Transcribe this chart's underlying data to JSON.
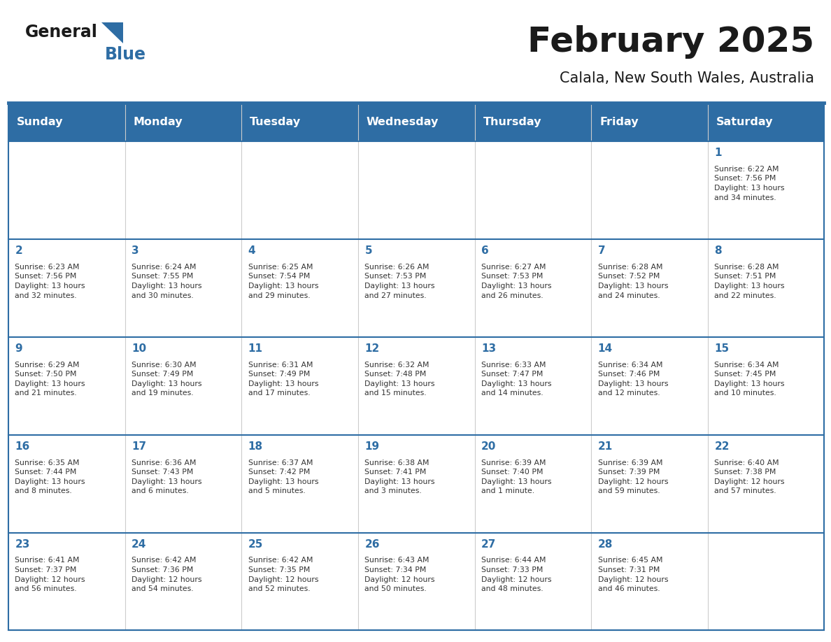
{
  "title": "February 2025",
  "subtitle": "Calala, New South Wales, Australia",
  "header_bg": "#2E6DA4",
  "header_text_color": "#FFFFFF",
  "day_number_color": "#2E6DA4",
  "text_color": "#333333",
  "border_color": "#2E6DA4",
  "days_of_week": [
    "Sunday",
    "Monday",
    "Tuesday",
    "Wednesday",
    "Thursday",
    "Friday",
    "Saturday"
  ],
  "weeks": [
    [
      {
        "day": null,
        "info": null
      },
      {
        "day": null,
        "info": null
      },
      {
        "day": null,
        "info": null
      },
      {
        "day": null,
        "info": null
      },
      {
        "day": null,
        "info": null
      },
      {
        "day": null,
        "info": null
      },
      {
        "day": 1,
        "info": "Sunrise: 6:22 AM\nSunset: 7:56 PM\nDaylight: 13 hours\nand 34 minutes."
      }
    ],
    [
      {
        "day": 2,
        "info": "Sunrise: 6:23 AM\nSunset: 7:56 PM\nDaylight: 13 hours\nand 32 minutes."
      },
      {
        "day": 3,
        "info": "Sunrise: 6:24 AM\nSunset: 7:55 PM\nDaylight: 13 hours\nand 30 minutes."
      },
      {
        "day": 4,
        "info": "Sunrise: 6:25 AM\nSunset: 7:54 PM\nDaylight: 13 hours\nand 29 minutes."
      },
      {
        "day": 5,
        "info": "Sunrise: 6:26 AM\nSunset: 7:53 PM\nDaylight: 13 hours\nand 27 minutes."
      },
      {
        "day": 6,
        "info": "Sunrise: 6:27 AM\nSunset: 7:53 PM\nDaylight: 13 hours\nand 26 minutes."
      },
      {
        "day": 7,
        "info": "Sunrise: 6:28 AM\nSunset: 7:52 PM\nDaylight: 13 hours\nand 24 minutes."
      },
      {
        "day": 8,
        "info": "Sunrise: 6:28 AM\nSunset: 7:51 PM\nDaylight: 13 hours\nand 22 minutes."
      }
    ],
    [
      {
        "day": 9,
        "info": "Sunrise: 6:29 AM\nSunset: 7:50 PM\nDaylight: 13 hours\nand 21 minutes."
      },
      {
        "day": 10,
        "info": "Sunrise: 6:30 AM\nSunset: 7:49 PM\nDaylight: 13 hours\nand 19 minutes."
      },
      {
        "day": 11,
        "info": "Sunrise: 6:31 AM\nSunset: 7:49 PM\nDaylight: 13 hours\nand 17 minutes."
      },
      {
        "day": 12,
        "info": "Sunrise: 6:32 AM\nSunset: 7:48 PM\nDaylight: 13 hours\nand 15 minutes."
      },
      {
        "day": 13,
        "info": "Sunrise: 6:33 AM\nSunset: 7:47 PM\nDaylight: 13 hours\nand 14 minutes."
      },
      {
        "day": 14,
        "info": "Sunrise: 6:34 AM\nSunset: 7:46 PM\nDaylight: 13 hours\nand 12 minutes."
      },
      {
        "day": 15,
        "info": "Sunrise: 6:34 AM\nSunset: 7:45 PM\nDaylight: 13 hours\nand 10 minutes."
      }
    ],
    [
      {
        "day": 16,
        "info": "Sunrise: 6:35 AM\nSunset: 7:44 PM\nDaylight: 13 hours\nand 8 minutes."
      },
      {
        "day": 17,
        "info": "Sunrise: 6:36 AM\nSunset: 7:43 PM\nDaylight: 13 hours\nand 6 minutes."
      },
      {
        "day": 18,
        "info": "Sunrise: 6:37 AM\nSunset: 7:42 PM\nDaylight: 13 hours\nand 5 minutes."
      },
      {
        "day": 19,
        "info": "Sunrise: 6:38 AM\nSunset: 7:41 PM\nDaylight: 13 hours\nand 3 minutes."
      },
      {
        "day": 20,
        "info": "Sunrise: 6:39 AM\nSunset: 7:40 PM\nDaylight: 13 hours\nand 1 minute."
      },
      {
        "day": 21,
        "info": "Sunrise: 6:39 AM\nSunset: 7:39 PM\nDaylight: 12 hours\nand 59 minutes."
      },
      {
        "day": 22,
        "info": "Sunrise: 6:40 AM\nSunset: 7:38 PM\nDaylight: 12 hours\nand 57 minutes."
      }
    ],
    [
      {
        "day": 23,
        "info": "Sunrise: 6:41 AM\nSunset: 7:37 PM\nDaylight: 12 hours\nand 56 minutes."
      },
      {
        "day": 24,
        "info": "Sunrise: 6:42 AM\nSunset: 7:36 PM\nDaylight: 12 hours\nand 54 minutes."
      },
      {
        "day": 25,
        "info": "Sunrise: 6:42 AM\nSunset: 7:35 PM\nDaylight: 12 hours\nand 52 minutes."
      },
      {
        "day": 26,
        "info": "Sunrise: 6:43 AM\nSunset: 7:34 PM\nDaylight: 12 hours\nand 50 minutes."
      },
      {
        "day": 27,
        "info": "Sunrise: 6:44 AM\nSunset: 7:33 PM\nDaylight: 12 hours\nand 48 minutes."
      },
      {
        "day": 28,
        "info": "Sunrise: 6:45 AM\nSunset: 7:31 PM\nDaylight: 12 hours\nand 46 minutes."
      },
      {
        "day": null,
        "info": null
      }
    ]
  ],
  "logo_general_color": "#1a1a1a",
  "logo_blue_color": "#2E6DA4",
  "logo_triangle_color": "#2E6DA4"
}
